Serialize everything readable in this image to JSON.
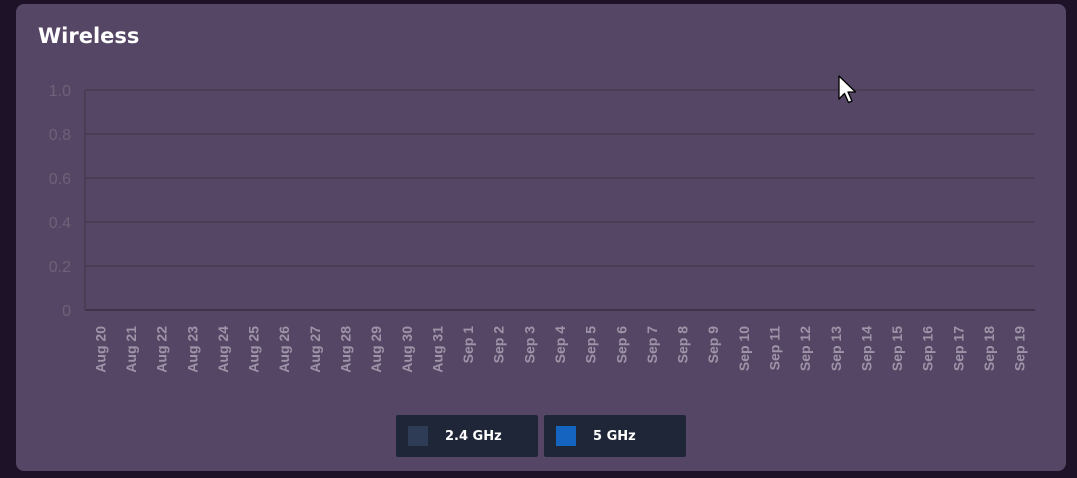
{
  "card": {
    "title": "Wireless"
  },
  "chart_data": {
    "type": "bar",
    "categories": [
      "Aug 20",
      "Aug 21",
      "Aug 22",
      "Aug 23",
      "Aug 24",
      "Aug 25",
      "Aug 26",
      "Aug 27",
      "Aug 28",
      "Aug 29",
      "Aug 30",
      "Aug 31",
      "Sep 1",
      "Sep 2",
      "Sep 3",
      "Sep 4",
      "Sep 5",
      "Sep 6",
      "Sep 7",
      "Sep 8",
      "Sep 9",
      "Sep 10",
      "Sep 11",
      "Sep 12",
      "Sep 13",
      "Sep 14",
      "Sep 15",
      "Sep 16",
      "Sep 17",
      "Sep 18",
      "Sep 19"
    ],
    "yticks": [
      "0",
      "0.2",
      "0.4",
      "0.6",
      "0.8",
      "1.0"
    ],
    "ylim": [
      0,
      1.0
    ],
    "grid": true,
    "legend_position": "bottom-center",
    "series": [
      {
        "name": "2.4 GHz",
        "color": "#2e3d55",
        "values": [
          0,
          0,
          0,
          0,
          0,
          0,
          0,
          0,
          0,
          0,
          0,
          0,
          0,
          0,
          0,
          0,
          0,
          0,
          0,
          0,
          0,
          0,
          0,
          0,
          0,
          0,
          0,
          0,
          0,
          0,
          0
        ]
      },
      {
        "name": "5 GHz",
        "color": "#1565c0",
        "values": [
          0,
          0,
          0,
          0,
          0,
          0,
          0,
          0,
          0,
          0,
          0,
          0,
          0,
          0,
          0,
          0,
          0,
          0,
          0,
          0,
          0,
          0,
          0,
          0,
          0,
          0,
          0,
          0,
          0,
          0,
          0
        ]
      }
    ]
  }
}
